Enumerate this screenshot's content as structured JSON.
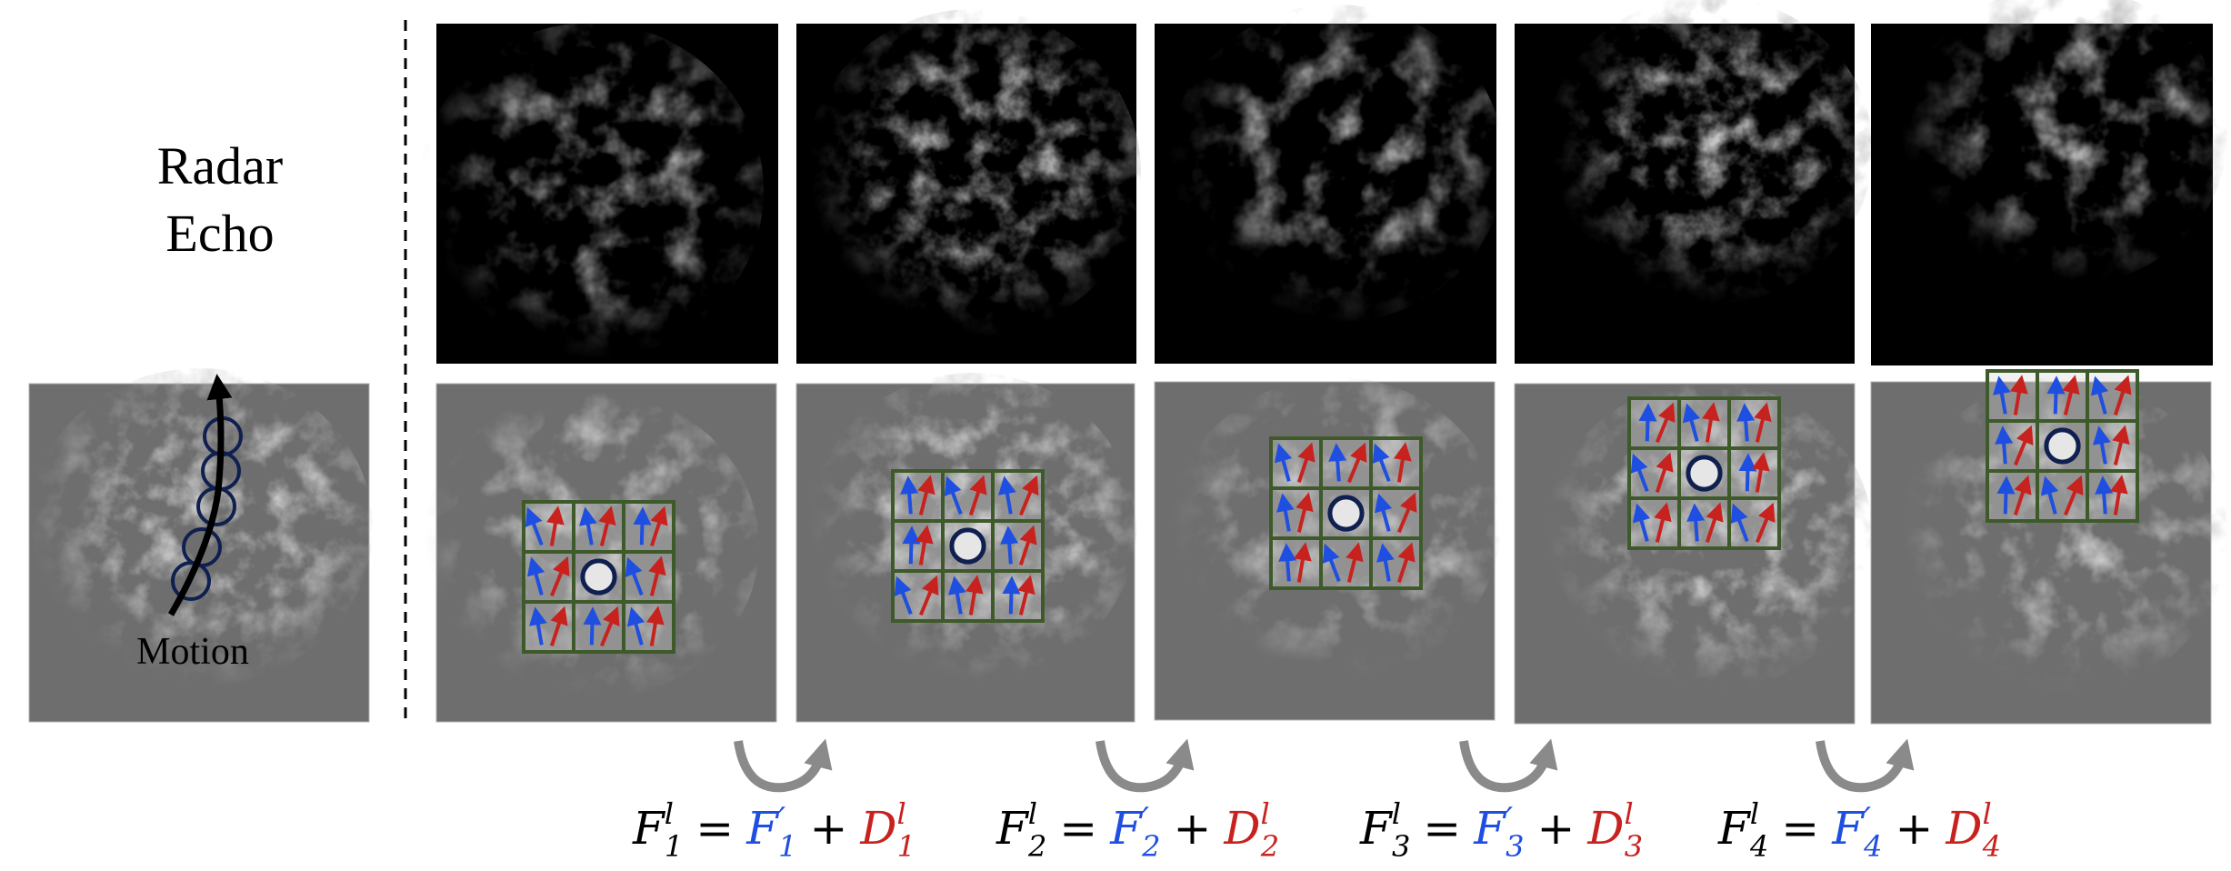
{
  "left_panel": {
    "title_line1": "Radar",
    "title_line2": "Echo",
    "motion_label": "Motion"
  },
  "equations": [
    {
      "lhs": "F",
      "lhs_sub": "1",
      "sup": "l",
      "eq": "=",
      "term1": "F",
      "term1_prime": "′",
      "term1_sub": "1",
      "plus": "+",
      "term2": "D",
      "term2_sub": "1",
      "term2_sup": "l"
    },
    {
      "lhs": "F",
      "lhs_sub": "2",
      "sup": "l",
      "eq": "=",
      "term1": "F",
      "term1_prime": "′",
      "term1_sub": "2",
      "plus": "+",
      "term2": "D",
      "term2_sub": "2",
      "term2_sup": "l"
    },
    {
      "lhs": "F",
      "lhs_sub": "3",
      "sup": "l",
      "eq": "=",
      "term1": "F",
      "term1_prime": "′",
      "term1_sub": "3",
      "plus": "+",
      "term2": "D",
      "term2_sub": "3",
      "term2_sup": "l"
    },
    {
      "lhs": "F",
      "lhs_sub": "4",
      "sup": "l",
      "eq": "=",
      "term1": "F",
      "term1_prime": "′",
      "term1_sub": "4",
      "plus": "+",
      "term2": "D",
      "term2_sub": "4",
      "term2_sup": "l"
    }
  ],
  "colors": {
    "radar_bg": "#000000",
    "motion_bg": "#6e6e6e",
    "grid_border": "#3e5a2a",
    "grid_fill": "#d8d8d8",
    "blue_arrow": "#1f4fe0",
    "red_arrow": "#c8221f",
    "circle_stroke": "#0f1f4f",
    "curve_arrow": "#8a8a8a"
  }
}
